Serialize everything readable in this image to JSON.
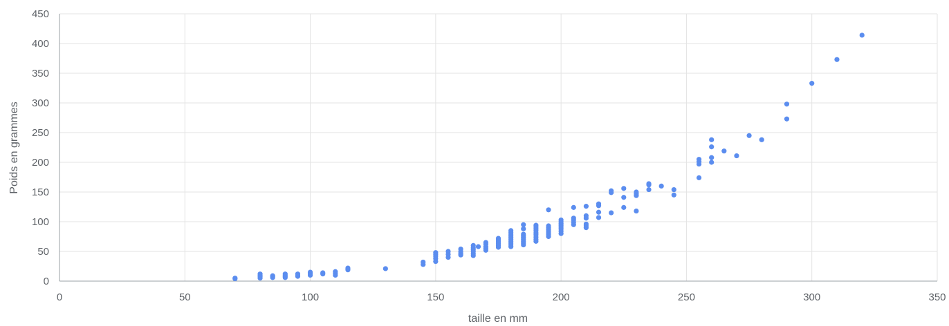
{
  "chart_data": {
    "type": "scatter",
    "title": "",
    "xlabel": "taille en mm",
    "ylabel": "Poids en grammes",
    "xlim": [
      0,
      350
    ],
    "ylim": [
      0,
      450
    ],
    "x_ticks": [
      0,
      50,
      100,
      150,
      200,
      250,
      300,
      350
    ],
    "y_ticks": [
      0,
      50,
      100,
      150,
      200,
      250,
      300,
      350,
      400,
      450
    ],
    "grid": true,
    "legend": "none",
    "color": "#5b8def",
    "points": [
      {
        "x": 70,
        "y": 4
      },
      {
        "x": 70,
        "y": 5
      },
      {
        "x": 80,
        "y": 5
      },
      {
        "x": 80,
        "y": 8
      },
      {
        "x": 80,
        "y": 10
      },
      {
        "x": 80,
        "y": 12
      },
      {
        "x": 85,
        "y": 6
      },
      {
        "x": 85,
        "y": 8
      },
      {
        "x": 85,
        "y": 9
      },
      {
        "x": 90,
        "y": 6
      },
      {
        "x": 90,
        "y": 8
      },
      {
        "x": 90,
        "y": 10
      },
      {
        "x": 90,
        "y": 12
      },
      {
        "x": 95,
        "y": 8
      },
      {
        "x": 95,
        "y": 10
      },
      {
        "x": 95,
        "y": 12
      },
      {
        "x": 100,
        "y": 10
      },
      {
        "x": 100,
        "y": 12
      },
      {
        "x": 100,
        "y": 15
      },
      {
        "x": 105,
        "y": 12
      },
      {
        "x": 105,
        "y": 14
      },
      {
        "x": 110,
        "y": 10
      },
      {
        "x": 110,
        "y": 13
      },
      {
        "x": 110,
        "y": 16
      },
      {
        "x": 115,
        "y": 19
      },
      {
        "x": 115,
        "y": 22
      },
      {
        "x": 130,
        "y": 21
      },
      {
        "x": 145,
        "y": 28
      },
      {
        "x": 145,
        "y": 32
      },
      {
        "x": 150,
        "y": 33
      },
      {
        "x": 150,
        "y": 38
      },
      {
        "x": 150,
        "y": 42
      },
      {
        "x": 150,
        "y": 45
      },
      {
        "x": 150,
        "y": 48
      },
      {
        "x": 155,
        "y": 40
      },
      {
        "x": 155,
        "y": 45
      },
      {
        "x": 155,
        "y": 50
      },
      {
        "x": 160,
        "y": 44
      },
      {
        "x": 160,
        "y": 47
      },
      {
        "x": 160,
        "y": 50
      },
      {
        "x": 160,
        "y": 54
      },
      {
        "x": 165,
        "y": 43
      },
      {
        "x": 165,
        "y": 46
      },
      {
        "x": 165,
        "y": 50
      },
      {
        "x": 165,
        "y": 53
      },
      {
        "x": 165,
        "y": 56
      },
      {
        "x": 165,
        "y": 60
      },
      {
        "x": 167,
        "y": 58
      },
      {
        "x": 170,
        "y": 52
      },
      {
        "x": 170,
        "y": 55
      },
      {
        "x": 170,
        "y": 58
      },
      {
        "x": 170,
        "y": 62
      },
      {
        "x": 170,
        "y": 65
      },
      {
        "x": 175,
        "y": 57
      },
      {
        "x": 175,
        "y": 60
      },
      {
        "x": 175,
        "y": 63
      },
      {
        "x": 175,
        "y": 66
      },
      {
        "x": 175,
        "y": 69
      },
      {
        "x": 175,
        "y": 72
      },
      {
        "x": 180,
        "y": 58
      },
      {
        "x": 180,
        "y": 61
      },
      {
        "x": 180,
        "y": 64
      },
      {
        "x": 180,
        "y": 67
      },
      {
        "x": 180,
        "y": 70
      },
      {
        "x": 180,
        "y": 73
      },
      {
        "x": 180,
        "y": 76
      },
      {
        "x": 180,
        "y": 79
      },
      {
        "x": 180,
        "y": 82
      },
      {
        "x": 180,
        "y": 85
      },
      {
        "x": 185,
        "y": 61
      },
      {
        "x": 185,
        "y": 64
      },
      {
        "x": 185,
        "y": 67
      },
      {
        "x": 185,
        "y": 70
      },
      {
        "x": 185,
        "y": 73
      },
      {
        "x": 185,
        "y": 76
      },
      {
        "x": 185,
        "y": 79
      },
      {
        "x": 185,
        "y": 88
      },
      {
        "x": 185,
        "y": 95
      },
      {
        "x": 190,
        "y": 67
      },
      {
        "x": 190,
        "y": 70
      },
      {
        "x": 190,
        "y": 74
      },
      {
        "x": 190,
        "y": 78
      },
      {
        "x": 190,
        "y": 81
      },
      {
        "x": 190,
        "y": 85
      },
      {
        "x": 190,
        "y": 88
      },
      {
        "x": 190,
        "y": 91
      },
      {
        "x": 190,
        "y": 94
      },
      {
        "x": 195,
        "y": 75
      },
      {
        "x": 195,
        "y": 78
      },
      {
        "x": 195,
        "y": 81
      },
      {
        "x": 195,
        "y": 84
      },
      {
        "x": 195,
        "y": 87
      },
      {
        "x": 195,
        "y": 90
      },
      {
        "x": 195,
        "y": 93
      },
      {
        "x": 195,
        "y": 120
      },
      {
        "x": 200,
        "y": 80
      },
      {
        "x": 200,
        "y": 84
      },
      {
        "x": 200,
        "y": 88
      },
      {
        "x": 200,
        "y": 91
      },
      {
        "x": 200,
        "y": 94
      },
      {
        "x": 200,
        "y": 97
      },
      {
        "x": 200,
        "y": 100
      },
      {
        "x": 200,
        "y": 103
      },
      {
        "x": 205,
        "y": 95
      },
      {
        "x": 205,
        "y": 99
      },
      {
        "x": 205,
        "y": 103
      },
      {
        "x": 205,
        "y": 106
      },
      {
        "x": 205,
        "y": 124
      },
      {
        "x": 210,
        "y": 90
      },
      {
        "x": 210,
        "y": 93
      },
      {
        "x": 210,
        "y": 96
      },
      {
        "x": 210,
        "y": 106
      },
      {
        "x": 210,
        "y": 110
      },
      {
        "x": 210,
        "y": 126
      },
      {
        "x": 215,
        "y": 107
      },
      {
        "x": 215,
        "y": 116
      },
      {
        "x": 215,
        "y": 127
      },
      {
        "x": 215,
        "y": 130
      },
      {
        "x": 220,
        "y": 115
      },
      {
        "x": 220,
        "y": 149
      },
      {
        "x": 220,
        "y": 152
      },
      {
        "x": 225,
        "y": 124
      },
      {
        "x": 225,
        "y": 141
      },
      {
        "x": 225,
        "y": 156
      },
      {
        "x": 230,
        "y": 118
      },
      {
        "x": 230,
        "y": 144
      },
      {
        "x": 230,
        "y": 147
      },
      {
        "x": 230,
        "y": 150
      },
      {
        "x": 235,
        "y": 154
      },
      {
        "x": 235,
        "y": 162
      },
      {
        "x": 235,
        "y": 164
      },
      {
        "x": 240,
        "y": 160
      },
      {
        "x": 245,
        "y": 145
      },
      {
        "x": 245,
        "y": 154
      },
      {
        "x": 255,
        "y": 174
      },
      {
        "x": 255,
        "y": 197
      },
      {
        "x": 255,
        "y": 201
      },
      {
        "x": 255,
        "y": 205
      },
      {
        "x": 260,
        "y": 200
      },
      {
        "x": 260,
        "y": 208
      },
      {
        "x": 260,
        "y": 226
      },
      {
        "x": 260,
        "y": 238
      },
      {
        "x": 265,
        "y": 219
      },
      {
        "x": 270,
        "y": 211
      },
      {
        "x": 275,
        "y": 245
      },
      {
        "x": 280,
        "y": 238
      },
      {
        "x": 290,
        "y": 273
      },
      {
        "x": 290,
        "y": 298
      },
      {
        "x": 300,
        "y": 333
      },
      {
        "x": 310,
        "y": 373
      },
      {
        "x": 320,
        "y": 414
      }
    ]
  }
}
